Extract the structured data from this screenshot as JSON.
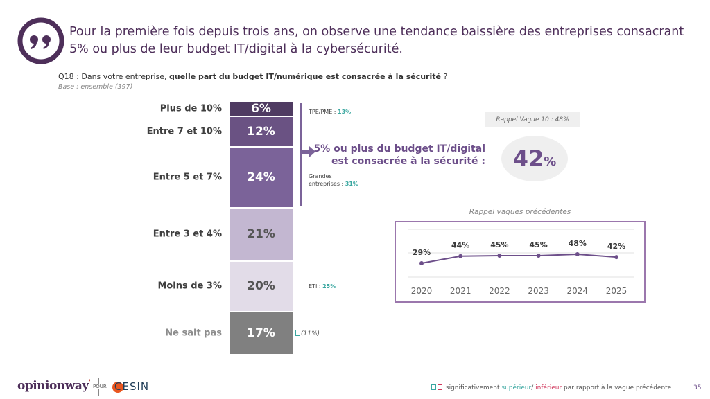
{
  "headline": "Pour la première fois depuis trois ans, on observe une tendance baissière des entreprises consacrant 5% ou plus de leur budget IT/digital à la cybersécurité.",
  "question": {
    "prefix": "Q18 : Dans votre entreprise, ",
    "bold": "quelle part du budget IT/numérique est consacrée à la sécurité",
    "suffix": " ?",
    "base": "Base : ensemble (397)"
  },
  "icons": {
    "quote": "quote-icon",
    "arrow": "arrow-right-icon"
  },
  "colors": {
    "brand": "#4e2f5a",
    "accent": "#6d4f8a",
    "superieur": "#3aa7a0",
    "inferieur": "#d0365b",
    "line_frame": "#9b77ad"
  },
  "chart_data": [
    {
      "type": "bar",
      "orientation": "stacked-vertical",
      "title": "Q18 : Dans votre entreprise, quelle part du budget IT/numérique est consacrée à la sécurité ?",
      "categories": [
        "Plus de 10%",
        "Entre 7 et 10%",
        "Entre 5 et 7%",
        "Entre 3 et 4%",
        "Moins de 3%",
        "Ne sait pas"
      ],
      "values": [
        6,
        12,
        24,
        21,
        20,
        17
      ],
      "labels": [
        "6%",
        "12%",
        "24%",
        "21%",
        "20%",
        "17%"
      ],
      "bar_colors": [
        "#4f3b62",
        "#6a5283",
        "#7b6399",
        "#c3b7d1",
        "#e2dce8",
        "#808080"
      ],
      "label_colors": [
        "#ffffff",
        "#ffffff",
        "#ffffff",
        "#555555",
        "#555555",
        "#ffffff"
      ],
      "unit": "%"
    },
    {
      "type": "line",
      "title": "Rappel vagues précédentes",
      "x": [
        "2020",
        "2021",
        "2022",
        "2023",
        "2024",
        "2025"
      ],
      "series": [
        {
          "name": "5% ou plus du budget IT/digital",
          "values": [
            29,
            44,
            45,
            45,
            48,
            42
          ]
        }
      ],
      "labels": [
        "29%",
        "44%",
        "45%",
        "45%",
        "48%",
        "42%"
      ],
      "ylim": [
        0,
        100
      ],
      "grid": true,
      "color": "#6d4f8a"
    }
  ],
  "annotations": {
    "tpe_pme": {
      "label": "TPE/PME : ",
      "value": "13%"
    },
    "grandes_entreprises": {
      "label_line1": "Grandes",
      "label_line2": "entreprises : ",
      "value": "31%"
    },
    "eti": {
      "label": "ETI : ",
      "value": "25%"
    },
    "ne_sait_pas_prev": "(11%)"
  },
  "summary": {
    "statement_line1": "5% ou plus du budget IT/digital",
    "statement_line2": "est consacrée à la sécurité :",
    "value_num": "42",
    "value_unit": "%",
    "rappel": "Rappel Vague 10 : 48%"
  },
  "footer": {
    "logo": "opinionway",
    "pour": "POUR",
    "partner": "CESIN",
    "legend_prefix": "significativement ",
    "legend_sup": "supérieur",
    "legend_sep": "/ ",
    "legend_inf": "inférieur",
    "legend_suffix": " par rapport à la vague précédente",
    "page": "35"
  }
}
